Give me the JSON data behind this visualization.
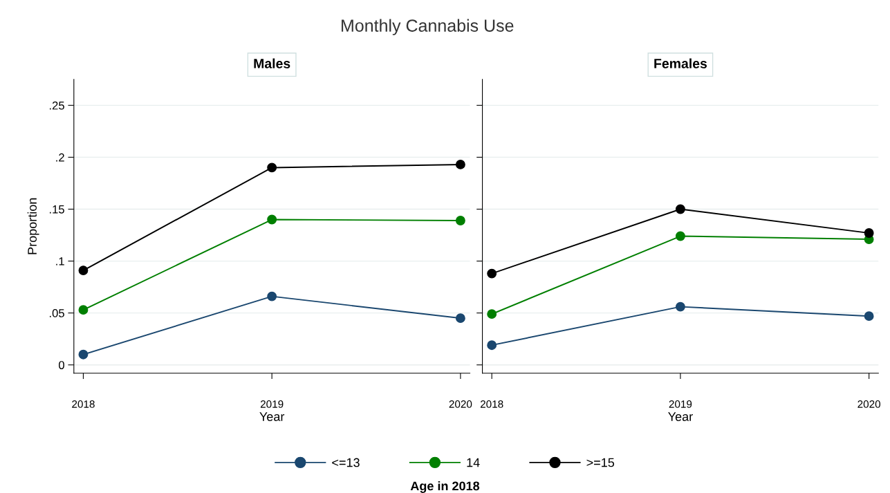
{
  "chart_data": [
    {
      "type": "line",
      "title": "Monthly Cannabis Use",
      "subtitle": "Males",
      "xlabel": "Year",
      "ylabel": "Proportion",
      "legend_title": "Age in 2018",
      "legend": "bottom",
      "grid": "y",
      "marker": "circle",
      "line_style": "solid",
      "x": [
        2018,
        2019,
        2020
      ],
      "xlim": [
        2017.95,
        2020.05
      ],
      "xticks": [
        2018,
        2019,
        2020
      ],
      "ylim": [
        -0.008,
        0.275
      ],
      "yticks": [
        {
          "value": 0,
          "label": "0"
        },
        {
          "value": 0.05,
          "label": ".05"
        },
        {
          "value": 0.1,
          "label": ".1"
        },
        {
          "value": 0.15,
          "label": ".15"
        },
        {
          "value": 0.2,
          "label": ".2"
        },
        {
          "value": 0.25,
          "label": ".25"
        }
      ],
      "series": [
        {
          "name": "<=13",
          "color": "#1a476f",
          "values": [
            0.01,
            0.066,
            0.045
          ]
        },
        {
          "name": "14",
          "color": "#007f00",
          "values": [
            0.053,
            0.14,
            0.139
          ]
        },
        {
          "name": ">=15",
          "color": "#000000",
          "values": [
            0.091,
            0.19,
            0.193
          ]
        }
      ]
    },
    {
      "type": "line",
      "subtitle": "Females",
      "xlabel": "Year",
      "grid": "y",
      "marker": "circle",
      "line_style": "solid",
      "tick_labels": "x",
      "x": [
        2018,
        2019,
        2020
      ],
      "xlim": [
        2017.95,
        2020.05
      ],
      "xticks": [
        2018,
        2019,
        2020
      ],
      "ylim": [
        -0.008,
        0.275
      ],
      "yticks": [
        0,
        0.05,
        0.1,
        0.15,
        0.2,
        0.25
      ],
      "series": [
        {
          "color": "#1a476f",
          "values": [
            0.019,
            0.056,
            0.047
          ]
        },
        {
          "color": "#007f00",
          "values": [
            0.049,
            0.124,
            0.121
          ]
        },
        {
          "color": "#000000",
          "values": [
            0.088,
            0.15,
            0.127
          ]
        }
      ]
    }
  ]
}
